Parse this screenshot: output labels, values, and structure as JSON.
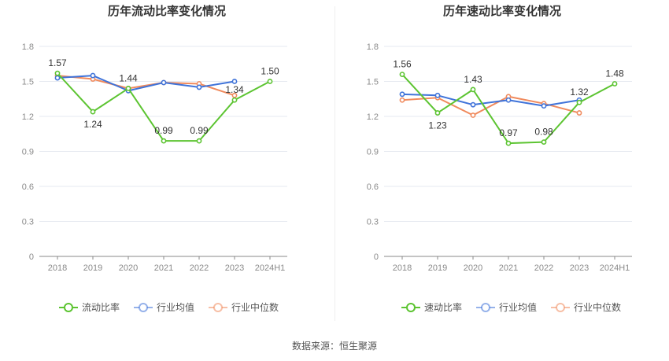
{
  "colors": {
    "primary": "#5cc431",
    "avg": "#3f73d9",
    "median": "#f08a5d",
    "grid": "#e6e9f0",
    "axis": "#888888"
  },
  "source": "数据来源：恒生聚源",
  "chart_data": [
    {
      "type": "line",
      "title": "历年流动比率变化情况",
      "categories": [
        "2018",
        "2019",
        "2020",
        "2021",
        "2022",
        "2023",
        "2024H1"
      ],
      "yticks": [
        "0",
        "0.3",
        "0.6",
        "0.9",
        "1.2",
        "1.5",
        "1.8"
      ],
      "ylim": [
        0,
        1.8
      ],
      "series": [
        {
          "name": "流动比率",
          "key": "primary",
          "values": [
            1.57,
            1.24,
            1.44,
            0.99,
            0.99,
            1.34,
            1.5
          ],
          "labels": [
            "1.57",
            "1.24",
            "1.44",
            "0.99",
            "0.99",
            "1.34",
            "1.50"
          ]
        },
        {
          "name": "行业均值",
          "key": "avg",
          "values": [
            1.53,
            1.55,
            1.42,
            1.49,
            1.45,
            1.5,
            null
          ]
        },
        {
          "name": "行业中位数",
          "key": "median",
          "values": [
            1.55,
            1.52,
            1.44,
            1.49,
            1.48,
            1.38,
            null
          ]
        }
      ]
    },
    {
      "type": "line",
      "title": "历年速动比率变化情况",
      "categories": [
        "2018",
        "2019",
        "2020",
        "2021",
        "2022",
        "2023",
        "2024H1"
      ],
      "yticks": [
        "0",
        "0.3",
        "0.6",
        "0.9",
        "1.2",
        "1.5",
        "1.8"
      ],
      "ylim": [
        0,
        1.8
      ],
      "series": [
        {
          "name": "速动比率",
          "key": "primary",
          "values": [
            1.56,
            1.23,
            1.43,
            0.97,
            0.98,
            1.32,
            1.48
          ],
          "labels": [
            "1.56",
            "1.23",
            "1.43",
            "0.97",
            "0.98",
            "1.32",
            "1.48"
          ]
        },
        {
          "name": "行业均值",
          "key": "avg",
          "values": [
            1.39,
            1.38,
            1.3,
            1.34,
            1.29,
            1.34,
            null
          ]
        },
        {
          "name": "行业中位数",
          "key": "median",
          "values": [
            1.34,
            1.36,
            1.21,
            1.37,
            1.31,
            1.23,
            null
          ]
        }
      ]
    }
  ]
}
